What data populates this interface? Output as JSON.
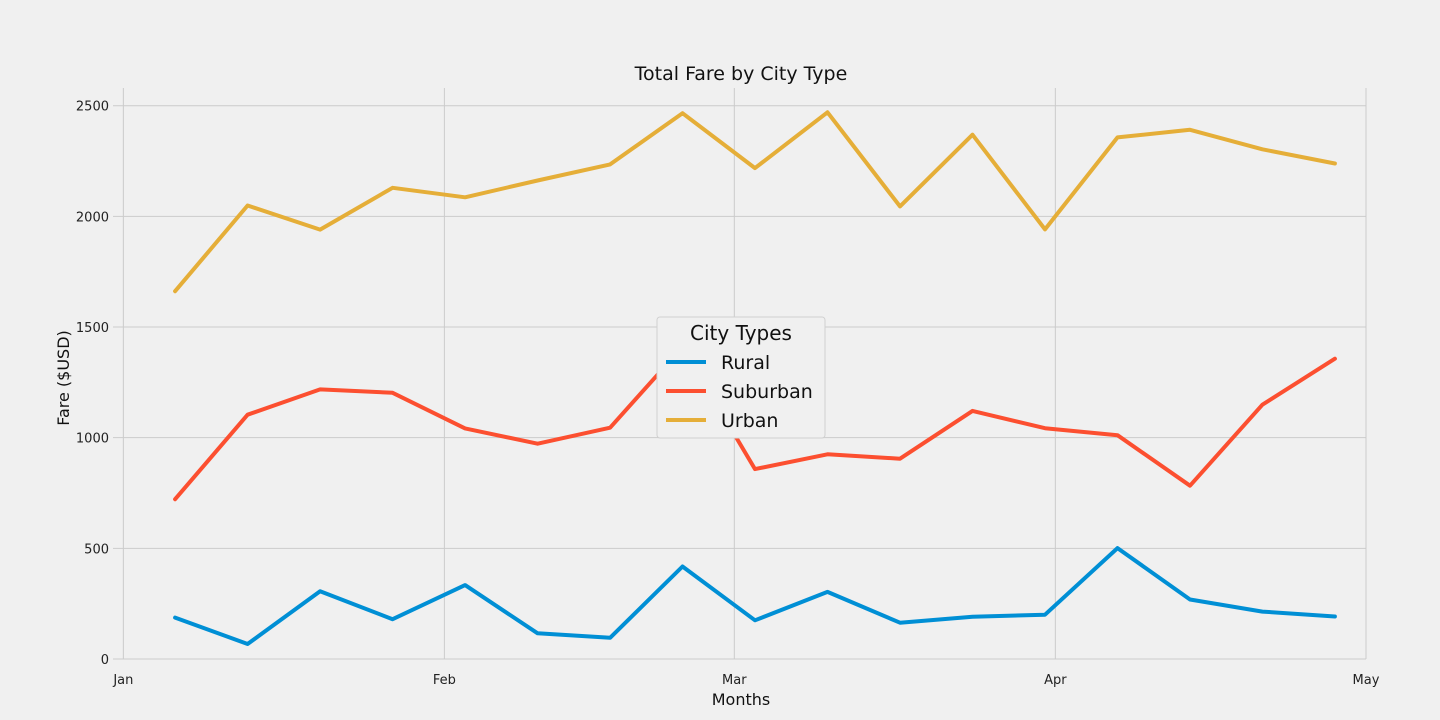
{
  "chart_data": {
    "type": "line",
    "title": "Total Fare by City Type",
    "xlabel": "Months",
    "ylabel": "Fare ($USD)",
    "x": [
      "2019-01-06",
      "2019-01-13",
      "2019-01-20",
      "2019-01-27",
      "2019-02-03",
      "2019-02-10",
      "2019-02-17",
      "2019-02-24",
      "2019-03-03",
      "2019-03-10",
      "2019-03-17",
      "2019-03-24",
      "2019-03-31",
      "2019-04-07",
      "2019-04-14",
      "2019-04-21",
      "2019-04-28"
    ],
    "x_ticks": [
      {
        "date": "2019-01-01",
        "label": "Jan"
      },
      {
        "date": "2019-02-01",
        "label": "Feb"
      },
      {
        "date": "2019-03-01",
        "label": "Mar"
      },
      {
        "date": "2019-04-01",
        "label": "Apr"
      },
      {
        "date": "2019-05-01",
        "label": "May"
      }
    ],
    "xlim": [
      "2018-12-31",
      "2019-05-01"
    ],
    "ylim": [
      0,
      2580
    ],
    "y_ticks": [
      0,
      500,
      1000,
      1500,
      2000,
      2500
    ],
    "grid": true,
    "legend": {
      "title": "City Types",
      "placement": "center"
    },
    "series": [
      {
        "name": "Rural",
        "color": "#008fd5",
        "values": [
          187,
          68,
          306,
          180,
          334,
          116,
          96,
          418,
          175,
          303,
          164,
          191,
          200,
          501,
          269,
          214,
          192
        ]
      },
      {
        "name": "Suburban",
        "color": "#fc4f30",
        "values": [
          722,
          1104,
          1218,
          1203,
          1042,
          973,
          1045,
          1410,
          858,
          925,
          905,
          1121,
          1043,
          1011,
          783,
          1149,
          1357
        ]
      },
      {
        "name": "Urban",
        "color": "#e5ae38",
        "values": [
          1662,
          2049,
          1940,
          2129,
          2086,
          2162,
          2235,
          2466,
          2218,
          2470,
          2045,
          2369,
          1941,
          2357,
          2391,
          2303,
          2239
        ]
      }
    ]
  }
}
